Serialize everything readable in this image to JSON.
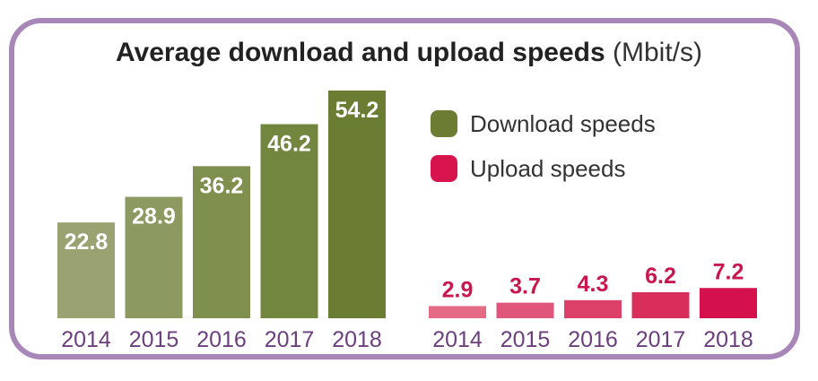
{
  "title": {
    "main": "Average download and upload speeds",
    "unit": "(Mbit/s)"
  },
  "legend": [
    {
      "label": "Download speeds",
      "color": "#6b7d33"
    },
    {
      "label": "Upload speeds",
      "color": "#d8144e"
    }
  ],
  "colors": {
    "download": [
      "#9aa272",
      "#8c9960",
      "#7f8f4d",
      "#73863f",
      "#6a7d33"
    ],
    "upload": [
      "#e56a86",
      "#e0567a",
      "#dc4068",
      "#d92d5c",
      "#d4114c"
    ],
    "upload_label": "#c8174f",
    "year_label": "#6b3f7d",
    "frame": "#a887b8"
  },
  "chart_data": [
    {
      "type": "bar",
      "title": "Average download and upload speeds (Mbit/s)",
      "series_name": "Download speeds",
      "categories": [
        "2014",
        "2015",
        "2016",
        "2017",
        "2018"
      ],
      "values": [
        22.8,
        28.9,
        36.2,
        46.2,
        54.2
      ],
      "value_labels": [
        "22.8",
        "28.9",
        "36.2",
        "46.2",
        "54.2"
      ],
      "ylim": [
        0,
        54.2
      ]
    },
    {
      "type": "bar",
      "series_name": "Upload speeds",
      "categories": [
        "2014",
        "2015",
        "2016",
        "2017",
        "2018"
      ],
      "values": [
        2.9,
        3.7,
        4.3,
        6.2,
        7.2
      ],
      "value_labels": [
        "2.9",
        "3.7",
        "4.3",
        "6.2",
        "7.2"
      ],
      "ylim": [
        0,
        54.2
      ]
    }
  ]
}
